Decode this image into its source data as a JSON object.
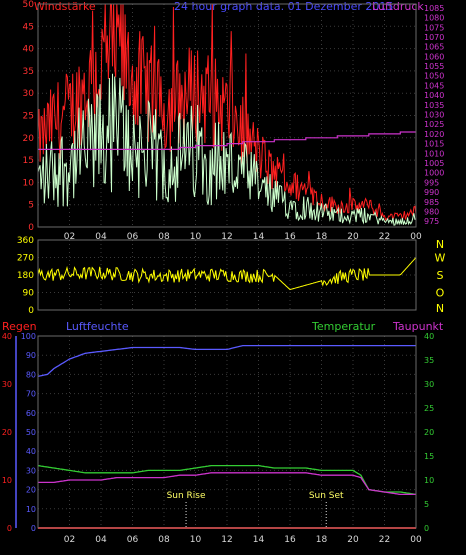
{
  "colors": {
    "background": "#000000",
    "frame": "#6a6a6a",
    "grid": "#3a3a3a",
    "wind_gust": "#ff2020",
    "wind_mean": "#ccffcc",
    "pressure": "#cc33cc",
    "direction": "#ffff00",
    "rain": "#ff2020",
    "humidity": "#5a5aff",
    "temperature": "#33cc33",
    "dewpoint": "#cc33cc",
    "left_axis": "#ff3030",
    "right_axis_pressure": "#cc33cc",
    "right_axis_direction": "#ffff00",
    "temp_axis": "#33cc33",
    "hum_axis": "#5a5aff",
    "sun": "#ffff66"
  },
  "header": {
    "wind_label": "Windstärke",
    "title": "24 hour graph data. 01 Dezember 2015",
    "pressure_label": "Luftdruck"
  },
  "panel3_header": {
    "rain_label": "Regen",
    "humidity_label": "Luftfeuchte",
    "temperature_label": "Temperatur",
    "dewpoint_label": "Taupunkt"
  },
  "time_ticks": [
    "02",
    "04",
    "06",
    "08",
    "10",
    "12",
    "14",
    "16",
    "18",
    "20",
    "22",
    "00"
  ],
  "compass": [
    "N",
    "W",
    "S",
    "O",
    "N"
  ],
  "sun": {
    "rise_label": "Sun Rise",
    "set_label": "Sun Set",
    "rise_hour": 9.4,
    "set_hour": 18.3
  },
  "chart_data": [
    {
      "type": "line",
      "x_unit": "hour",
      "xlim": [
        0,
        24
      ],
      "ylim": [
        0,
        50
      ],
      "y_ticks": [
        "0",
        "5",
        "10",
        "15",
        "20",
        "25",
        "30",
        "35",
        "40",
        "45",
        "50"
      ],
      "y2lim": [
        972,
        1087
      ],
      "y2_ticks": [
        "975",
        "980",
        "985",
        "990",
        "995",
        "1000",
        "1005",
        "1010",
        "1015",
        "1020",
        "1025",
        "1030",
        "1035",
        "1040",
        "1045",
        "1050",
        "1055",
        "1060",
        "1065",
        "1070",
        "1075",
        "1080",
        "1085"
      ],
      "series": [
        {
          "name": "Windstärke",
          "x": [
            0,
            1,
            2,
            3,
            4,
            5,
            6,
            7,
            8,
            9,
            10,
            11,
            12,
            13,
            14,
            15,
            16,
            17,
            18,
            19,
            20,
            21,
            22,
            23,
            24
          ],
          "y": [
            16,
            20,
            22,
            26,
            30,
            34,
            28,
            26,
            22,
            24,
            26,
            24,
            22,
            18,
            14,
            10,
            8,
            7,
            5,
            4,
            4,
            4,
            2,
            2,
            3
          ]
        },
        {
          "name": "Luftdruck",
          "x": [
            0,
            1,
            2,
            3,
            4,
            5,
            6,
            7,
            8,
            9,
            10,
            11,
            12,
            13,
            14,
            15,
            16,
            17,
            18,
            19,
            20,
            21,
            22,
            23,
            24
          ],
          "y": [
            1012,
            1012,
            1012,
            1012,
            1012,
            1012,
            1012,
            1012,
            1012,
            1013,
            1014,
            1014,
            1015,
            1016,
            1016,
            1017,
            1017,
            1018,
            1018,
            1019,
            1019,
            1020,
            1020,
            1021,
            1021
          ]
        }
      ]
    },
    {
      "type": "line",
      "x_unit": "hour",
      "xlim": [
        0,
        24
      ],
      "ylim": [
        0,
        360
      ],
      "y_ticks": [
        "360",
        "270",
        "180",
        "90",
        "0"
      ],
      "series": [
        {
          "name": "Windrichtung",
          "x": [
            0,
            2,
            4,
            6,
            8,
            10,
            12,
            14,
            15,
            16,
            18,
            20,
            21,
            22,
            23,
            24
          ],
          "y": [
            180,
            185,
            190,
            180,
            175,
            180,
            180,
            175,
            180,
            105,
            150,
            180,
            180,
            180,
            180,
            270
          ]
        }
      ]
    },
    {
      "type": "line",
      "x_unit": "hour",
      "xlim": [
        0,
        24
      ],
      "y_rain": {
        "ylim": [
          0,
          40
        ],
        "ticks": [
          "0",
          "10",
          "20",
          "30",
          "40"
        ]
      },
      "y_humidity": {
        "ylim": [
          0,
          100
        ],
        "ticks": [
          "0",
          "10",
          "20",
          "30",
          "40",
          "50",
          "60",
          "70",
          "80",
          "90",
          "100"
        ]
      },
      "y_temperature": {
        "ylim": [
          0,
          40
        ],
        "ticks": [
          "0",
          "5",
          "10",
          "15",
          "20",
          "25",
          "30",
          "35",
          "40"
        ]
      },
      "series": [
        {
          "name": "Luftfeuchte",
          "x": [
            0,
            0.6,
            1,
            1.6,
            2,
            3,
            4,
            5,
            6,
            7,
            8,
            9,
            10,
            11,
            12,
            13,
            14,
            15,
            16,
            17,
            18,
            19,
            20,
            21,
            22,
            23,
            24
          ],
          "y": [
            79,
            80,
            83,
            86,
            88,
            91,
            92,
            93,
            94,
            94,
            94,
            94,
            93,
            93,
            93,
            95,
            95,
            95,
            95,
            95,
            95,
            95,
            95,
            95,
            95,
            95,
            95
          ]
        },
        {
          "name": "Temperatur",
          "x": [
            0,
            1,
            2,
            3,
            4,
            5,
            6,
            7,
            8,
            9,
            10,
            11,
            12,
            13,
            14,
            15,
            16,
            17,
            18,
            19,
            20,
            20.5,
            21,
            22,
            23,
            24
          ],
          "y": [
            13,
            12.5,
            12,
            11.5,
            11.5,
            11.5,
            11.5,
            12,
            12,
            12,
            12.5,
            13,
            13,
            13,
            13,
            12.5,
            12.5,
            12.5,
            12,
            12,
            12,
            11,
            8,
            7.5,
            7.5,
            7
          ]
        },
        {
          "name": "Taupunkt",
          "x": [
            0,
            1,
            2,
            3,
            4,
            5,
            6,
            7,
            8,
            9,
            10,
            11,
            12,
            13,
            14,
            15,
            16,
            17,
            18,
            19,
            20,
            20.5,
            21,
            22,
            23,
            24
          ],
          "y": [
            9.5,
            9.5,
            10,
            10,
            10,
            10.5,
            10.5,
            10.5,
            10.5,
            11,
            11,
            11.5,
            11.5,
            11.5,
            11.5,
            11.5,
            11.5,
            11.5,
            11,
            11,
            11,
            10.5,
            8,
            7.5,
            7,
            7
          ]
        },
        {
          "name": "Regen",
          "x": [
            0,
            24
          ],
          "y": [
            0,
            0
          ]
        }
      ]
    }
  ]
}
